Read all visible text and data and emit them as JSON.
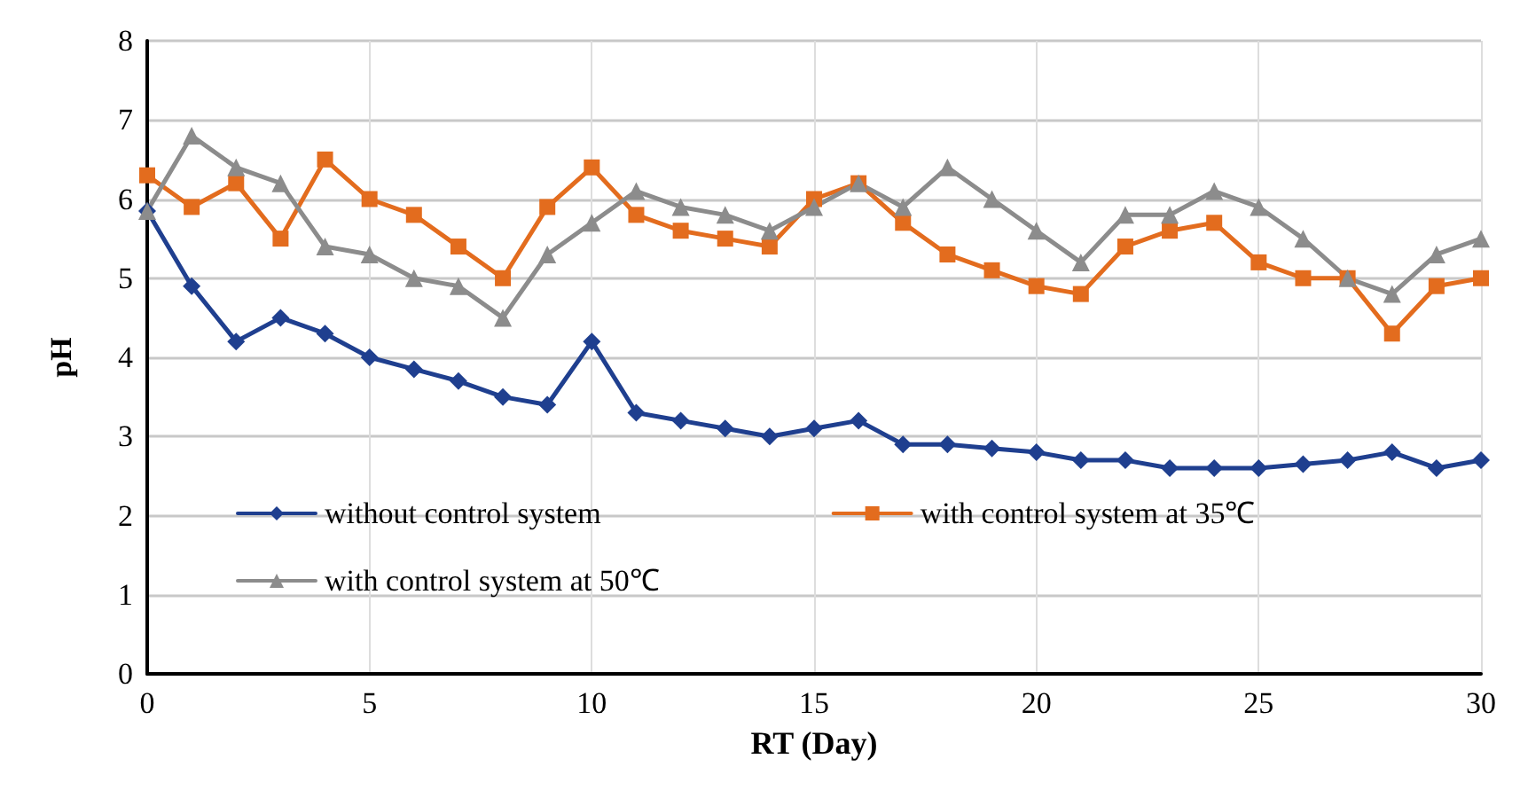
{
  "chart_data": {
    "type": "line",
    "xlabel": "RT (Day)",
    "ylabel": "pH",
    "x": [
      0,
      1,
      2,
      3,
      4,
      5,
      6,
      7,
      8,
      9,
      10,
      11,
      12,
      13,
      14,
      15,
      16,
      17,
      18,
      19,
      20,
      21,
      22,
      23,
      24,
      25,
      26,
      27,
      28,
      29,
      30
    ],
    "series": [
      {
        "name": "without control system",
        "color": "#1f3f8f",
        "marker": "diamond",
        "values": [
          5.85,
          4.9,
          4.2,
          4.5,
          4.3,
          4.0,
          3.85,
          3.7,
          3.5,
          3.4,
          4.2,
          3.3,
          3.2,
          3.1,
          3.0,
          3.1,
          3.2,
          2.9,
          2.9,
          2.85,
          2.8,
          2.7,
          2.7,
          2.6,
          2.6,
          2.6,
          2.65,
          2.7,
          2.8,
          2.6,
          2.7
        ]
      },
      {
        "name": "with control system at 35℃",
        "color": "#e36c1e",
        "marker": "square",
        "values": [
          6.3,
          5.9,
          6.2,
          5.5,
          6.5,
          6.0,
          5.8,
          5.4,
          5.0,
          5.9,
          6.4,
          5.8,
          5.6,
          5.5,
          5.4,
          6.0,
          6.2,
          5.7,
          5.3,
          5.1,
          4.9,
          4.8,
          5.4,
          5.6,
          5.7,
          5.2,
          5.0,
          5.0,
          4.3,
          4.9,
          5.0
        ]
      },
      {
        "name": "with control system at 50℃",
        "color": "#8c8c8c",
        "marker": "triangle",
        "values": [
          5.85,
          6.8,
          6.4,
          6.2,
          5.4,
          5.3,
          5.0,
          4.9,
          4.5,
          5.3,
          5.7,
          6.1,
          5.9,
          5.8,
          5.6,
          5.9,
          6.2,
          5.9,
          6.4,
          6.0,
          5.6,
          5.2,
          5.8,
          5.8,
          6.1,
          5.9,
          5.5,
          5.0,
          4.8,
          5.3,
          5.5
        ]
      }
    ],
    "xlim": [
      0,
      30
    ],
    "xticks": [
      0,
      5,
      10,
      15,
      20,
      25,
      30
    ],
    "ylim": [
      0,
      8
    ],
    "yticks": [
      0,
      1,
      2,
      3,
      4,
      5,
      6,
      7,
      8
    ],
    "grid": true,
    "legend": "bottom",
    "line_style": "solid"
  }
}
